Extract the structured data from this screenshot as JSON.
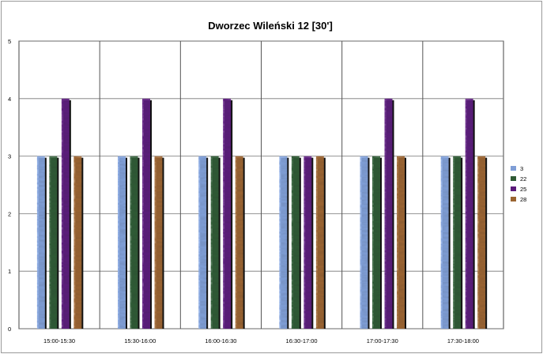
{
  "chart_data": {
    "type": "bar",
    "title": "Dworzec Wileński 12 [30']",
    "xlabel": "",
    "ylabel": "",
    "ylim": [
      0,
      5
    ],
    "yticks": [
      "0",
      "1",
      "2",
      "3",
      "4",
      "5"
    ],
    "grid": true,
    "legend_position": "right",
    "categories": [
      "15:00-15:30",
      "15:30-16:00",
      "16:00-16:30",
      "16:30-17:00",
      "17:00-17:30",
      "17:30-18:00"
    ],
    "series": [
      {
        "name": "3",
        "color": "#7f9ed6",
        "values": [
          3,
          3,
          3,
          3,
          3,
          3
        ]
      },
      {
        "name": "22",
        "color": "#2f5a35",
        "values": [
          3,
          3,
          3,
          3,
          3,
          3
        ]
      },
      {
        "name": "25",
        "color": "#5a1a7a",
        "values": [
          4,
          4,
          4,
          3,
          4,
          4
        ]
      },
      {
        "name": "28",
        "color": "#9a6430",
        "values": [
          3,
          3,
          3,
          3,
          3,
          3
        ]
      }
    ]
  }
}
